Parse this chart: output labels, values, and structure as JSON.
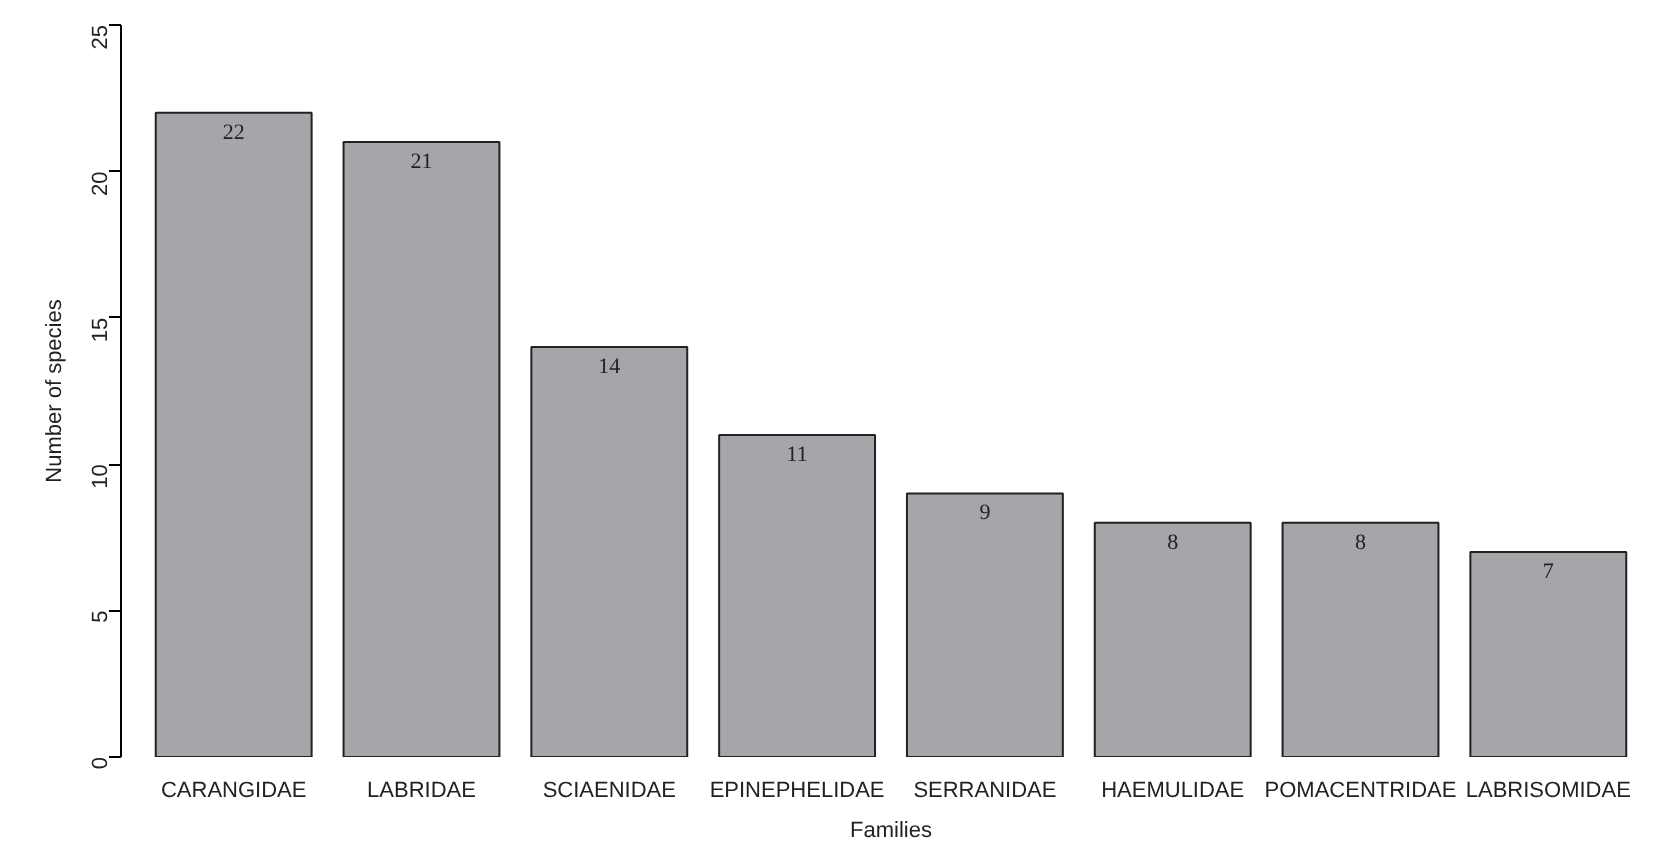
{
  "chart_data": {
    "type": "bar",
    "xlabel": "Families",
    "ylabel": "Number of species",
    "categories": [
      "CARANGIDAE",
      "LABRIDAE",
      "SCIAENIDAE",
      "EPINEPHELIDAE",
      "SERRANIDAE",
      "HAEMULIDAE",
      "POMACENTRIDAE",
      "LABRISOMIDAE"
    ],
    "values": [
      22,
      21,
      14,
      11,
      9,
      8,
      8,
      7
    ],
    "color": "#a6a6aa",
    "ylim": [
      0,
      25
    ],
    "yticks": [
      0,
      5,
      10,
      15,
      20,
      25
    ],
    "grid": false,
    "data_labels": true
  }
}
